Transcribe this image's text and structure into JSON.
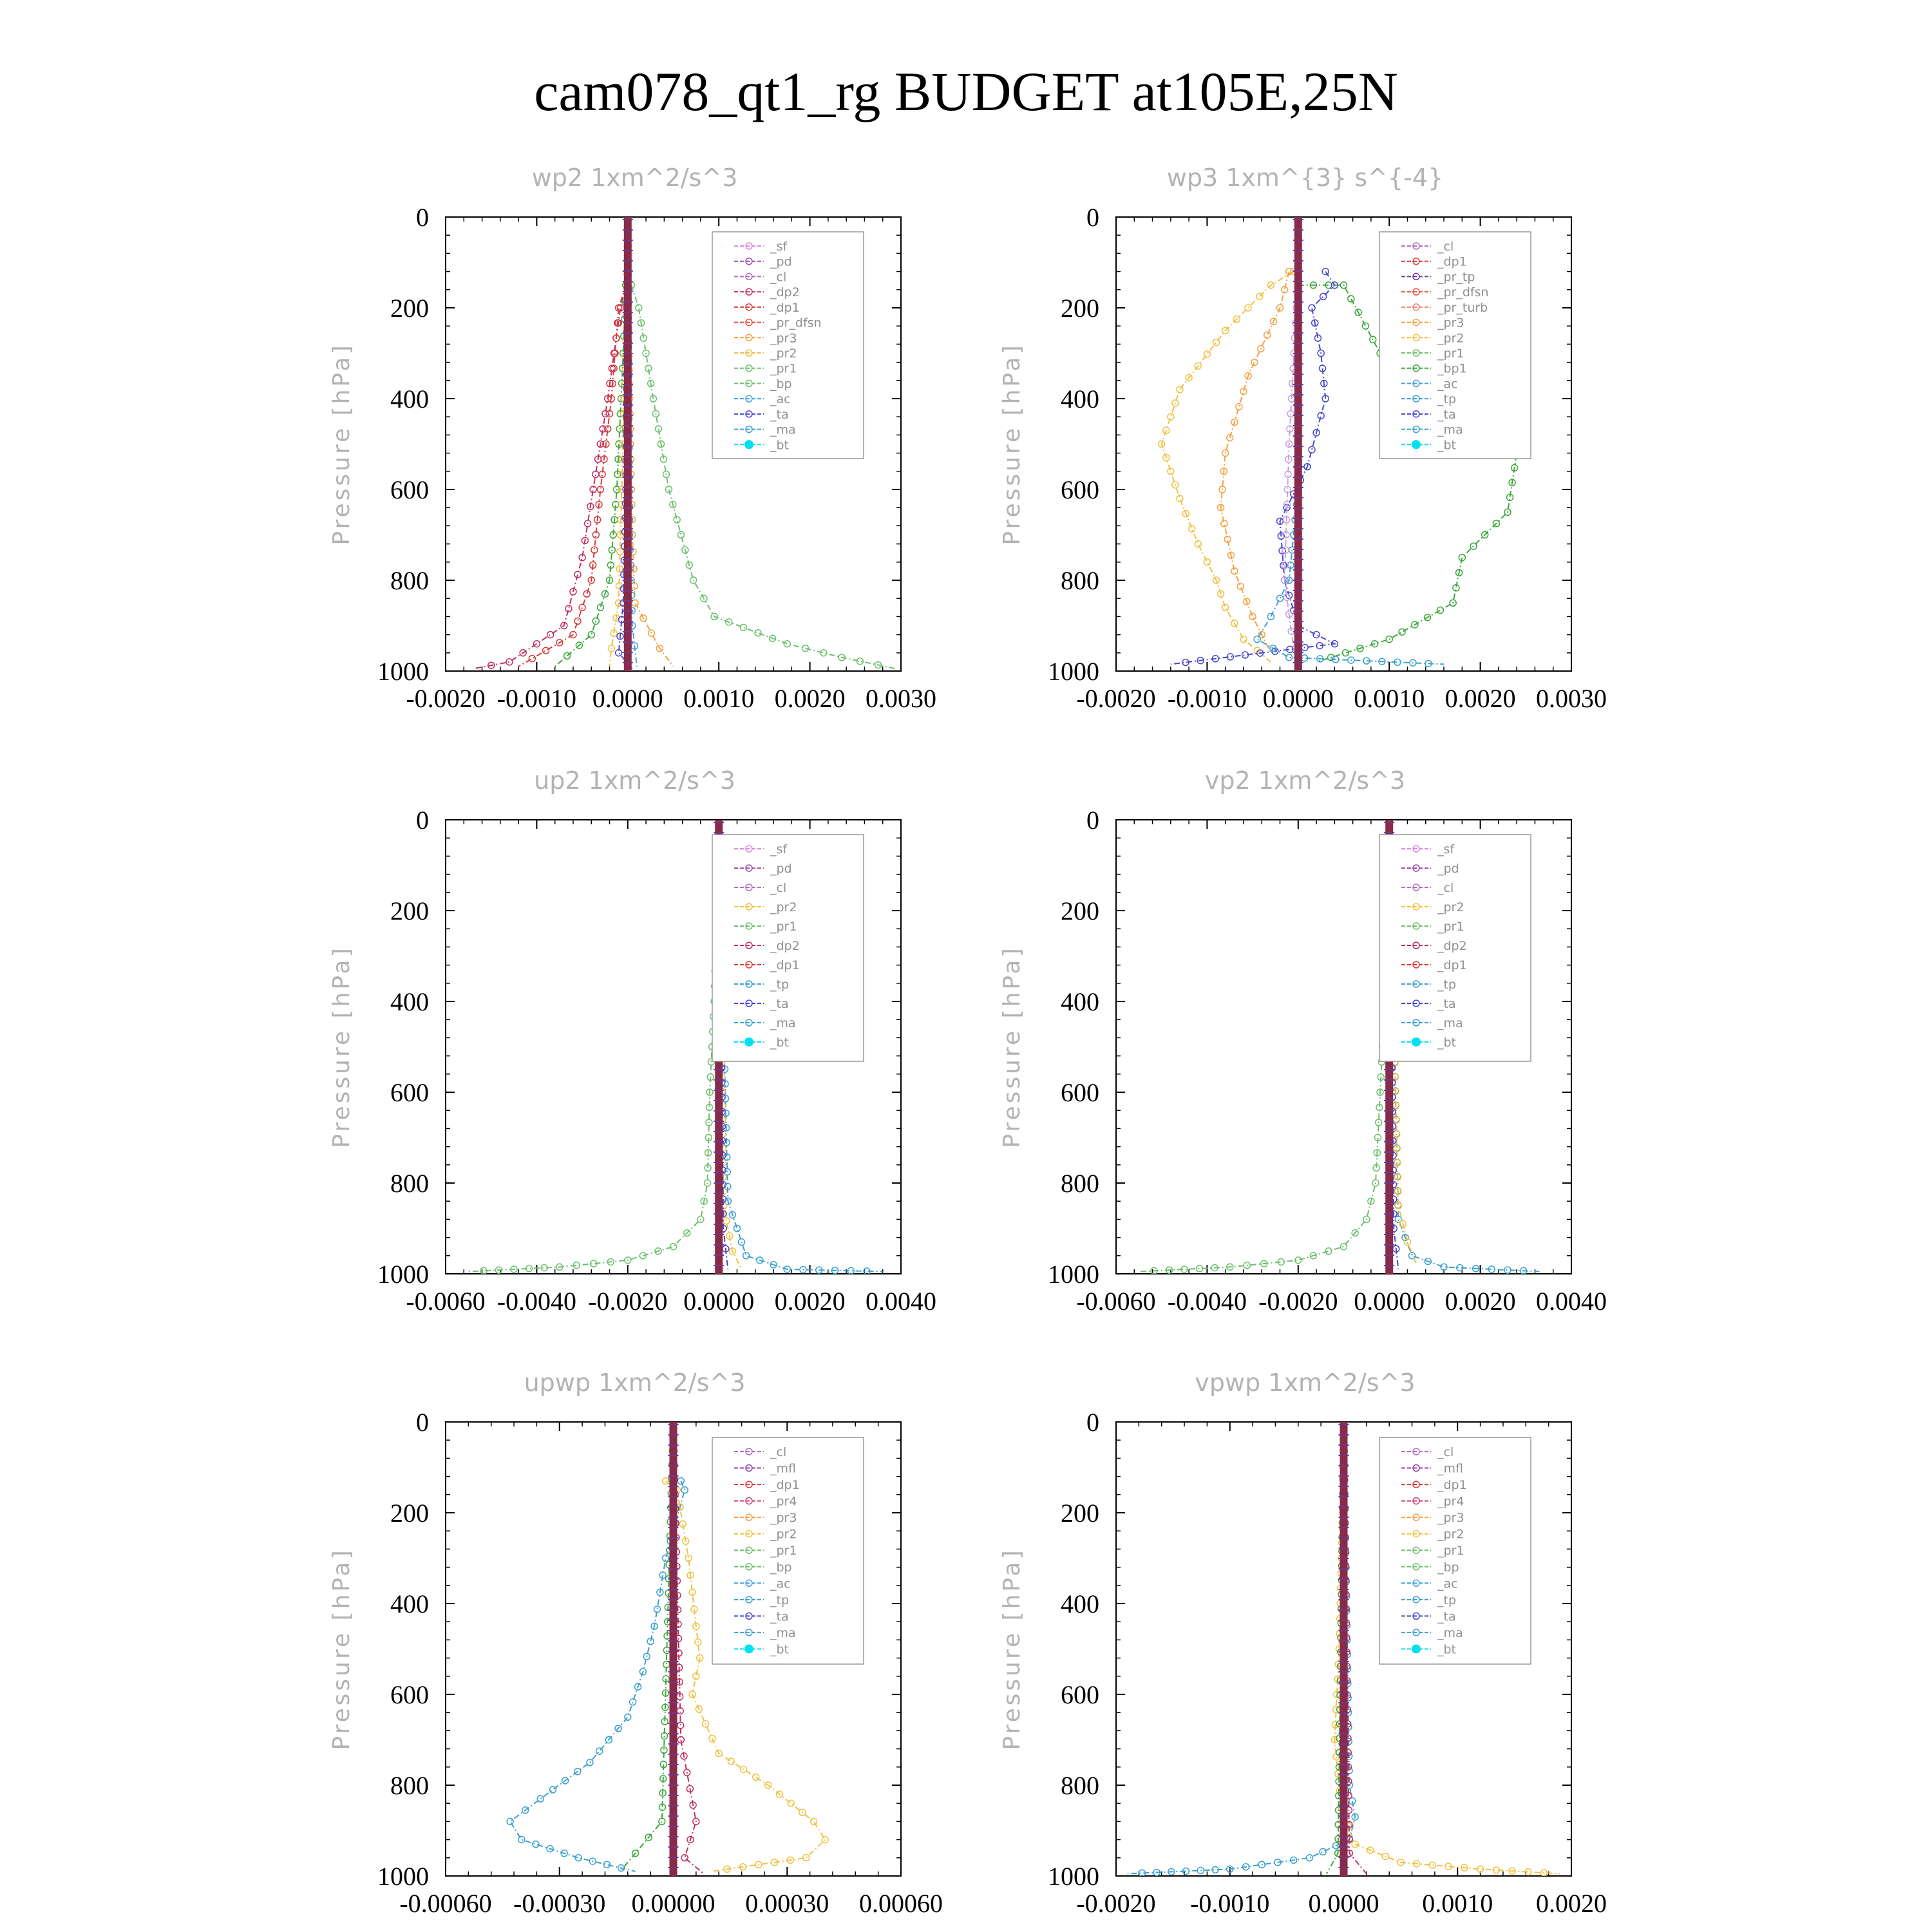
{
  "title": "cam078_qt1_rg  BUDGET at105E,25N",
  "colors": {
    "_sf": "#dd88dd",
    "_pd": "#9b4fb0",
    "_cl": "#b06fc0",
    "_dp2": "#c03060",
    "_dp1": "#d83a3a",
    "_pr_dfsn": "#e8503a",
    "_pr3": "#f4a040",
    "_pr2": "#f0c040",
    "_pr1": "#6cc06c",
    "_bp": "#6cc06c",
    "_ac": "#46a0e0",
    "_ta": "#4848d0",
    "_ma": "#3aa0d0",
    "_bt": "#00e0f0",
    "_tp": "#3aa0d0",
    "_pr_tp": "#6a3ab0",
    "_pr_turb": "#f08070",
    "_bp1": "#3aa83a",
    "_mfl": "#9040b0",
    "_pr4": "#d04070"
  },
  "chart_data": [
    {
      "type": "line",
      "title": "wp2  1xm^2/s^3",
      "ylabel": "Pressure [hPa]",
      "xlim": [
        -0.002,
        0.003
      ],
      "ylim": [
        1000,
        0
      ],
      "xticks": [
        "-0.0020",
        "-0.0010",
        "0.0000",
        "0.0010",
        "0.0020",
        "0.0030"
      ],
      "yticks": [
        "0",
        "200",
        "400",
        "600",
        "800",
        "1000"
      ],
      "legend_position": "top-right",
      "legend": [
        "_sf",
        "_pd",
        "_cl",
        "_dp2",
        "_dp1",
        "_pr_dfsn",
        "_pr3",
        "_pr2",
        "_pr1",
        "_bp",
        "_ac",
        "_ta",
        "_ma",
        "_bt"
      ],
      "series": [
        {
          "name": "_bp",
          "color": "#6cc06c",
          "x": [
            4e-05,
            0.00012,
            0.00028,
            0.00045,
            0.00072,
            0.00095,
            0.00175,
            0.00235,
            0.00295
          ],
          "y": [
            150,
            200,
            400,
            600,
            800,
            880,
            940,
            970,
            995
          ]
        },
        {
          "name": "_dp2",
          "color": "#c03060",
          "x": [
            -2e-05,
            -8e-05,
            -0.00022,
            -0.00038,
            -0.0005,
            -0.0007,
            -0.0013,
            -0.0017
          ],
          "y": [
            150,
            200,
            400,
            600,
            750,
            900,
            980,
            995
          ]
        },
        {
          "name": "_dp1",
          "color": "#d83a3a",
          "x": [
            -2e-05,
            -0.0001,
            -0.00018,
            -0.0003,
            -0.0004,
            -0.0006,
            -0.0012
          ],
          "y": [
            150,
            200,
            400,
            600,
            800,
            920,
            990
          ]
        },
        {
          "name": "_pr1",
          "color": "#3aa83a",
          "x": [
            -2e-05,
            -5e-05,
            -0.00012,
            -0.0002,
            -0.0004,
            -0.0008
          ],
          "y": [
            150,
            300,
            600,
            800,
            920,
            990
          ]
        },
        {
          "name": "_pr2",
          "color": "#f0c040",
          "x": [
            0.0,
            -4e-05,
            -8e-05,
            -0.0001,
            -0.00018,
            -0.0002
          ],
          "y": [
            150,
            400,
            700,
            850,
            950,
            990
          ]
        },
        {
          "name": "_pr3",
          "color": "#f4a040",
          "x": [
            0.0,
            2e-05,
            5e-05,
            8e-05,
            0.00035,
            0.0005
          ],
          "y": [
            150,
            400,
            700,
            850,
            950,
            990
          ]
        },
        {
          "name": "_ta",
          "color": "#4848d0",
          "x": [
            0.0,
            -2e-05,
            -5e-05,
            -0.0001,
            5e-05
          ],
          "y": [
            0,
            600,
            850,
            960,
            995
          ]
        },
        {
          "name": "_ac",
          "color": "#46a0e0",
          "x": [
            0.0,
            2e-05,
            5e-05,
            0.0001
          ],
          "y": [
            0,
            700,
            900,
            990
          ]
        },
        {
          "name": "_bt",
          "color": "#8a2a4a",
          "x": [
            0.0,
            0.0
          ],
          "y": [
            0,
            1000
          ]
        }
      ]
    },
    {
      "type": "line",
      "title": "wp3  1xm^{3} s^{-4}",
      "ylabel": "Pressure [hPa]",
      "xlim": [
        -0.002,
        0.003
      ],
      "ylim": [
        1000,
        0
      ],
      "xticks": [
        "-0.0020",
        "-0.0010",
        "0.0000",
        "0.0010",
        "0.0020",
        "0.0030"
      ],
      "yticks": [
        "0",
        "200",
        "400",
        "600",
        "800",
        "1000"
      ],
      "legend_position": "top-right",
      "legend": [
        "_cl",
        "_dp1",
        "_pr_tp",
        "_pr_dfsn",
        "_pr_turb",
        "_pr3",
        "_pr2",
        "_pr1",
        "_bp1",
        "_ac",
        "_tp",
        "_ta",
        "_ma",
        "_bt"
      ],
      "series": [
        {
          "name": "_pr1",
          "color": "#f0c040",
          "x": [
            -5e-05,
            -0.0003,
            -0.0008,
            -0.0013,
            -0.0015,
            -0.0013,
            -0.0011,
            -0.0009,
            -0.0008,
            -0.0006,
            -0.0003
          ],
          "y": [
            120,
            150,
            250,
            380,
            500,
            620,
            720,
            800,
            860,
            930,
            980
          ]
        },
        {
          "name": "_pr2",
          "color": "#f4a040",
          "x": [
            -0.0001,
            -0.0002,
            -0.00055,
            -0.0008,
            -0.00085,
            -0.0007,
            -0.0005,
            -0.0003
          ],
          "y": [
            120,
            200,
            350,
            520,
            640,
            780,
            880,
            960
          ]
        },
        {
          "name": "_bp1",
          "color": "#3aa83a",
          "x": [
            0.0,
            0.0005,
            0.0009,
            0.0016,
            0.0024,
            0.0023,
            0.0018,
            0.0017,
            0.001,
            0.0002
          ],
          "y": [
            150,
            150,
            300,
            400,
            520,
            650,
            750,
            850,
            930,
            980
          ]
        },
        {
          "name": "_ta",
          "color": "#4848d0",
          "x": [
            0.0003,
            0.0004,
            0.00015,
            0.00025,
            0.0003,
            0.0001,
            -0.0002,
            -0.00015,
            0.0,
            0.0004,
            -0.0014
          ],
          "y": [
            120,
            150,
            200,
            300,
            400,
            550,
            670,
            800,
            900,
            940,
            985
          ]
        },
        {
          "name": "_tp",
          "color": "#3aa0d0",
          "x": [
            0.0,
            0.0,
            -0.0001,
            -0.0003,
            -0.00045,
            -0.0001,
            0.0016
          ],
          "y": [
            150,
            600,
            800,
            880,
            930,
            970,
            985
          ]
        },
        {
          "name": "_cl",
          "color": "#c8a0e0",
          "x": [
            -2e-05,
            -0.0001,
            -0.00015,
            -5e-05
          ],
          "y": [
            200,
            500,
            800,
            950
          ]
        },
        {
          "name": "_bt",
          "color": "#8a2a4a",
          "x": [
            0.0,
            0.0
          ],
          "y": [
            0,
            1000
          ]
        }
      ]
    },
    {
      "type": "line",
      "title": "up2  1xm^2/s^3",
      "ylabel": "Pressure [hPa]",
      "xlim": [
        -0.006,
        0.004
      ],
      "ylim": [
        1000,
        0
      ],
      "xticks": [
        "-0.0060",
        "-0.0040",
        "-0.0020",
        "0.0000",
        "0.0020",
        "0.0040"
      ],
      "yticks": [
        "0",
        "200",
        "400",
        "600",
        "800",
        "1000"
      ],
      "legend_position": "top-right",
      "legend": [
        "_sf",
        "_pd",
        "_cl",
        "_pr2",
        "_pr1",
        "_dp2",
        "_dp1",
        "_tp",
        "_ta",
        "_ma",
        "_bt"
      ],
      "series": [
        {
          "name": "_dp1",
          "color": "#6cc06c",
          "x": [
            0.0,
            -0.0001,
            -0.0002,
            -0.00025,
            -0.0004,
            -0.001,
            -0.002,
            -0.0035,
            -0.0055
          ],
          "y": [
            0,
            400,
            600,
            800,
            880,
            940,
            970,
            985,
            995
          ]
        },
        {
          "name": "_tp",
          "color": "#3aa0d0",
          "x": [
            0.0,
            0.0002,
            0.0004,
            0.0006,
            0.0015,
            0.0036
          ],
          "y": [
            0,
            840,
            900,
            960,
            990,
            995
          ]
        },
        {
          "name": "_pr2",
          "color": "#f0c040",
          "x": [
            0.0,
            0.0001,
            0.0003,
            0.0005
          ],
          "y": [
            0,
            850,
            950,
            990
          ]
        },
        {
          "name": "_ta",
          "color": "#4848d0",
          "x": [
            0.0,
            0.0001,
            0.0002
          ],
          "y": [
            0,
            900,
            990
          ]
        },
        {
          "name": "_bt",
          "color": "#8a2a4a",
          "x": [
            0.0,
            0.0
          ],
          "y": [
            0,
            1000
          ]
        }
      ]
    },
    {
      "type": "line",
      "title": "vp2  1xm^2/s^3",
      "ylabel": "Pressure [hPa]",
      "xlim": [
        -0.006,
        0.004
      ],
      "ylim": [
        1000,
        0
      ],
      "xticks": [
        "-0.0060",
        "-0.0040",
        "-0.0020",
        "0.0000",
        "0.0020",
        "0.0040"
      ],
      "yticks": [
        "0",
        "200",
        "400",
        "600",
        "800",
        "1000"
      ],
      "legend_position": "top-right",
      "legend": [
        "_sf",
        "_pd",
        "_cl",
        "_pr2",
        "_pr1",
        "_dp2",
        "_dp1",
        "_tp",
        "_ta",
        "_ma",
        "_bt"
      ],
      "series": [
        {
          "name": "_dp1",
          "color": "#6cc06c",
          "x": [
            0.0,
            -0.0001,
            -0.0002,
            -0.0003,
            -0.0005,
            -0.001,
            -0.002,
            -0.0035,
            -0.0055
          ],
          "y": [
            0,
            400,
            600,
            800,
            880,
            940,
            970,
            985,
            995
          ]
        },
        {
          "name": "_tp",
          "color": "#3aa0d0",
          "x": [
            0.0,
            0.0002,
            0.0005,
            0.0012,
            0.0033
          ],
          "y": [
            0,
            880,
            960,
            985,
            995
          ]
        },
        {
          "name": "_pr1",
          "color": "#f0c040",
          "x": [
            0.0,
            0.0002,
            0.0004,
            0.0006
          ],
          "y": [
            0,
            850,
            930,
            980
          ]
        },
        {
          "name": "_ta",
          "color": "#4848d0",
          "x": [
            0.0,
            0.0001,
            0.0002
          ],
          "y": [
            0,
            900,
            990
          ]
        },
        {
          "name": "_bt",
          "color": "#8a2a4a",
          "x": [
            0.0,
            0.0
          ],
          "y": [
            0,
            1000
          ]
        }
      ]
    },
    {
      "type": "line",
      "title": "upwp  1xm^2/s^3",
      "ylabel": "Pressure [hPa]",
      "xlim": [
        -0.0006,
        0.0006
      ],
      "ylim": [
        1000,
        0
      ],
      "xticks": [
        "-0.00060",
        "-0.00030",
        "0.00000",
        "0.00030",
        "0.00060"
      ],
      "yticks": [
        "0",
        "200",
        "400",
        "600",
        "800",
        "1000"
      ],
      "legend_position": "top-right",
      "legend": [
        "_cl",
        "_mfl",
        "_dp1",
        "_pr4",
        "_pr3",
        "_pr2",
        "_pr1",
        "_bp",
        "_ac",
        "_tp",
        "_ta",
        "_ma",
        "_bt"
      ],
      "series": [
        {
          "name": "_tp",
          "color": "#3aa0d0",
          "x": [
            2e-05,
            3e-05,
            -2e-05,
            -5e-05,
            -8e-05,
            -0.00012,
            -0.00022,
            -0.00035,
            -0.00043,
            -0.0004,
            -0.00025,
            -0.0001
          ],
          "y": [
            130,
            150,
            300,
            450,
            550,
            650,
            750,
            830,
            880,
            920,
            960,
            990
          ]
        },
        {
          "name": "_pr1",
          "color": "#f0c040",
          "x": [
            -2e-05,
            1e-05,
            4e-05,
            6e-05,
            7e-05,
            5e-05,
            0.00012,
            0.00025,
            0.00037,
            0.0004,
            0.00035,
            0.0001
          ],
          "y": [
            130,
            150,
            300,
            450,
            520,
            600,
            730,
            800,
            880,
            920,
            960,
            990
          ]
        },
        {
          "name": "_bp",
          "color": "#3aa83a",
          "x": [
            0.0,
            -3e-05,
            -0.0001,
            -0.00014
          ],
          "y": [
            0,
            880,
            950,
            990
          ]
        },
        {
          "name": "_dp1",
          "color": "#c03060",
          "x": [
            0.0,
            2e-05,
            6e-05,
            3e-05,
            8e-05
          ],
          "y": [
            0,
            700,
            880,
            960,
            995
          ]
        },
        {
          "name": "_bt",
          "color": "#8a2a4a",
          "x": [
            0.0,
            0.0
          ],
          "y": [
            0,
            1000
          ]
        }
      ]
    },
    {
      "type": "line",
      "title": "vpwp  1xm^2/s^3",
      "ylabel": "Pressure [hPa]",
      "xlim": [
        -0.002,
        0.002
      ],
      "ylim": [
        1000,
        0
      ],
      "xticks": [
        "-0.0020",
        "-0.0010",
        "0.0000",
        "0.0010",
        "0.0020"
      ],
      "yticks": [
        "0",
        "200",
        "400",
        "600",
        "800",
        "1000"
      ],
      "legend_position": "top-right",
      "legend": [
        "_cl",
        "_mfl",
        "_dp1",
        "_pr4",
        "_pr3",
        "_pr2",
        "_pr1",
        "_bp",
        "_ac",
        "_tp",
        "_ta",
        "_ma",
        "_bt"
      ],
      "series": [
        {
          "name": "_pr1",
          "color": "#f0c040",
          "x": [
            0.0,
            -2e-05,
            -4e-05,
            -8e-05,
            -2e-05,
            0.0001,
            0.0005,
            0.0012,
            0.0019
          ],
          "y": [
            100,
            300,
            500,
            700,
            850,
            930,
            970,
            985,
            995
          ]
        },
        {
          "name": "_tp",
          "color": "#3aa0d0",
          "x": [
            0.0,
            5e-05,
            0.0001,
            5e-05,
            -0.0003,
            -0.001,
            -0.0019
          ],
          "y": [
            0,
            800,
            870,
            920,
            960,
            985,
            995
          ]
        },
        {
          "name": "_dp1",
          "color": "#c03060",
          "x": [
            0.0,
            5e-05,
            0.0002
          ],
          "y": [
            0,
            950,
            995
          ]
        },
        {
          "name": "_bp",
          "color": "#3aa83a",
          "x": [
            0.0,
            -5e-05,
            -0.00015
          ],
          "y": [
            0,
            950,
            995
          ]
        },
        {
          "name": "_bt",
          "color": "#8a2a4a",
          "x": [
            0.0,
            0.0
          ],
          "y": [
            0,
            1000
          ]
        }
      ]
    }
  ]
}
